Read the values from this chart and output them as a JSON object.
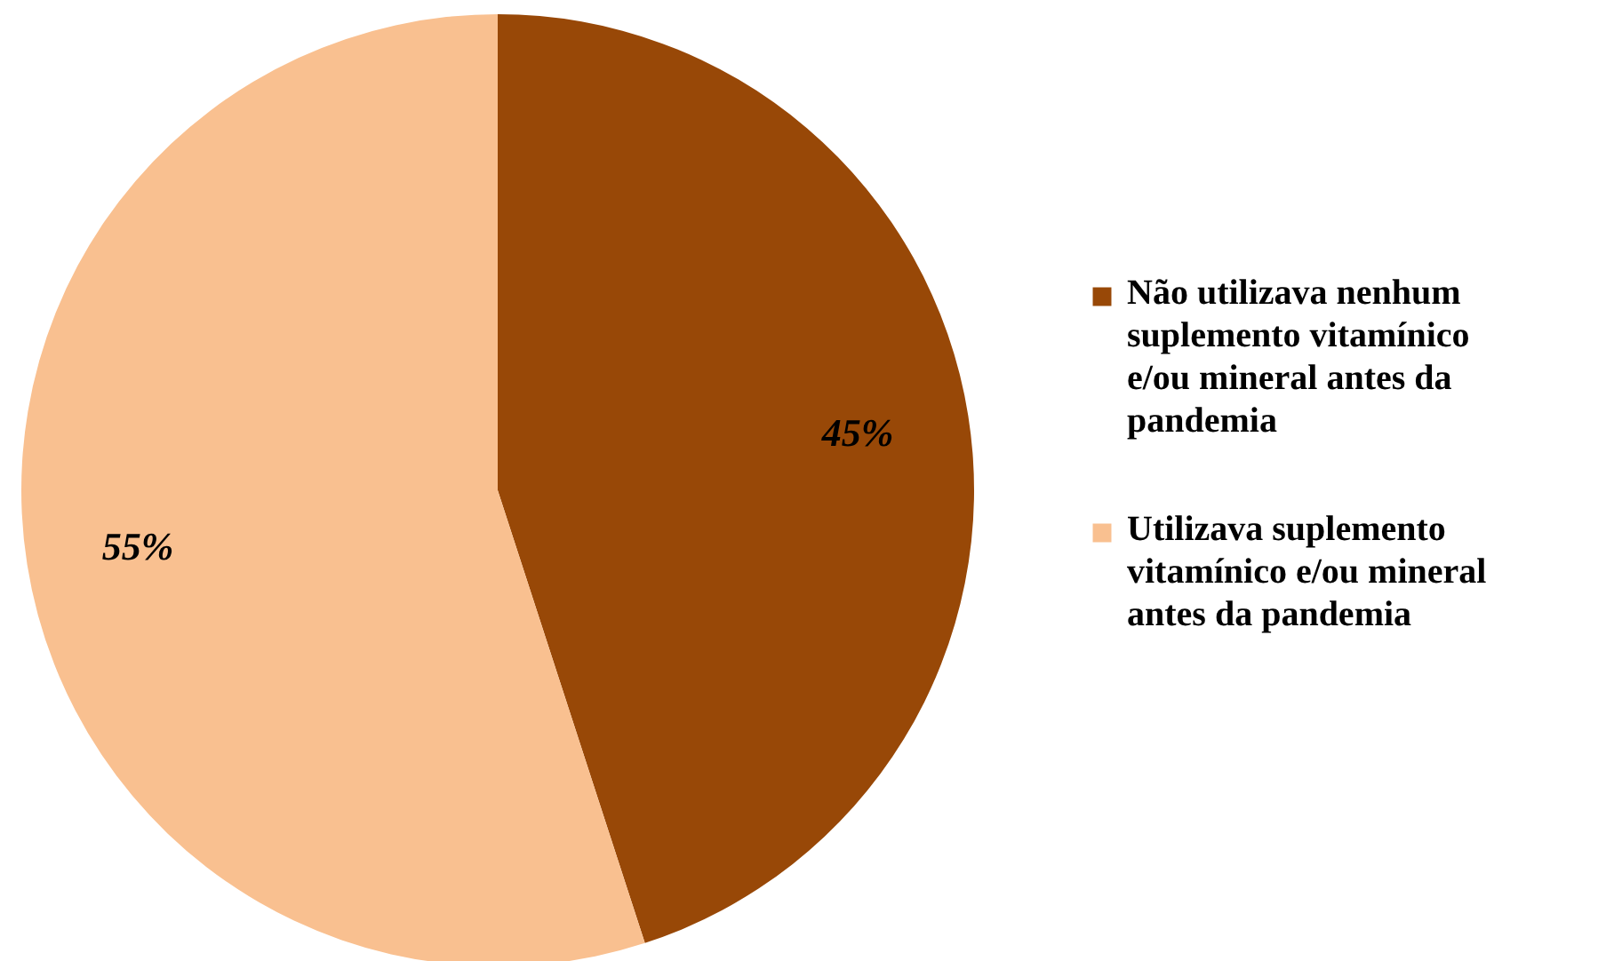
{
  "chart_data": {
    "type": "pie",
    "categories": [
      "Não utilizava nenhum suplemento vitamínico e/ou mineral antes da pandemia",
      "Utilizava suplemento vitamínico e/ou mineral antes da pandemia"
    ],
    "values": [
      45,
      55
    ],
    "colors": [
      "#984807",
      "#f9c090"
    ],
    "value_labels": [
      "45%",
      "55%"
    ],
    "legend": "right"
  }
}
